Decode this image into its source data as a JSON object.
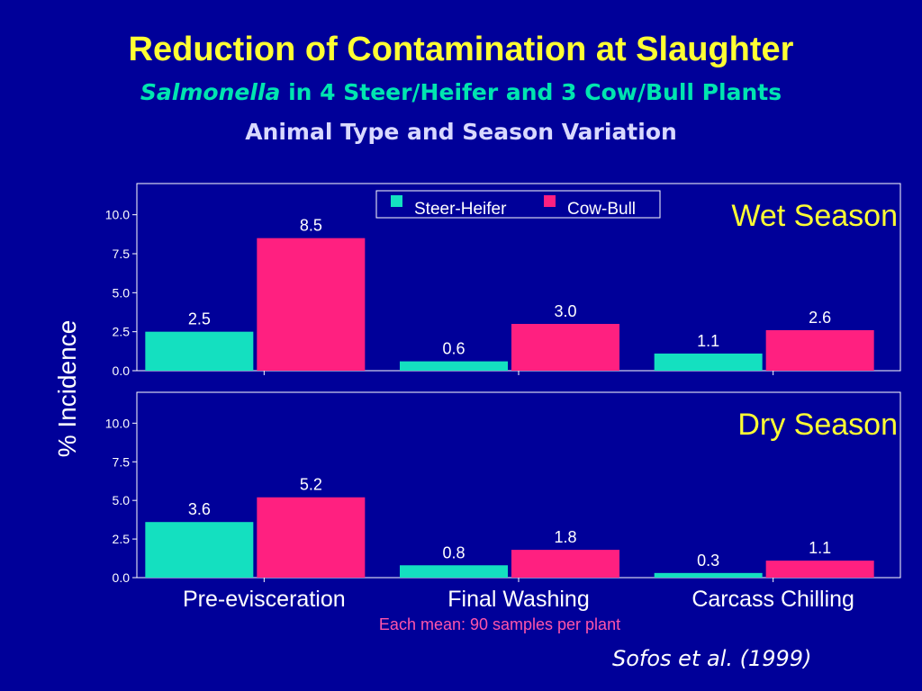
{
  "slide": {
    "title": "Reduction of Contamination at Slaughter",
    "subtitle_italic": "Salmonella",
    "subtitle_rest": " in 4 Steer/Heifer and 3 Cow/Bull Plants",
    "subtitle2": "Animal Type and Season Variation",
    "citation": "Sofos et al. (1999)"
  },
  "chart_data": {
    "type": "bar",
    "ylabel": "% Incidence",
    "note": "Each mean: 90 samples per plant",
    "categories": [
      "Pre-evisceration",
      "Final Washing",
      "Carcass Chilling"
    ],
    "ylim": [
      0,
      12
    ],
    "yticks": [
      "0.0",
      "2.5",
      "5.0",
      "7.5",
      "10.0"
    ],
    "legend": [
      "Steer-Heifer",
      "Cow-Bull"
    ],
    "legend_position": "top-center",
    "colors": {
      "Steer-Heifer": "#14e0c0",
      "Cow-Bull": "#ff2080",
      "background": "#000099",
      "title": "#ffff33"
    },
    "panels": [
      {
        "label": "Wet Season",
        "series": [
          {
            "name": "Steer-Heifer",
            "values": [
              2.5,
              0.6,
              1.1
            ],
            "labels": [
              "2.5",
              "0.6",
              "1.1"
            ]
          },
          {
            "name": "Cow-Bull",
            "values": [
              8.5,
              3.0,
              2.6
            ],
            "labels": [
              "8.5",
              "3.0",
              "2.6"
            ]
          }
        ]
      },
      {
        "label": "Dry Season",
        "series": [
          {
            "name": "Steer-Heifer",
            "values": [
              3.6,
              0.8,
              0.3
            ],
            "labels": [
              "3.6",
              "0.8",
              "0.3"
            ]
          },
          {
            "name": "Cow-Bull",
            "values": [
              5.2,
              1.8,
              1.1
            ],
            "labels": [
              "5.2",
              "1.8",
              "1.1"
            ]
          }
        ]
      }
    ]
  }
}
